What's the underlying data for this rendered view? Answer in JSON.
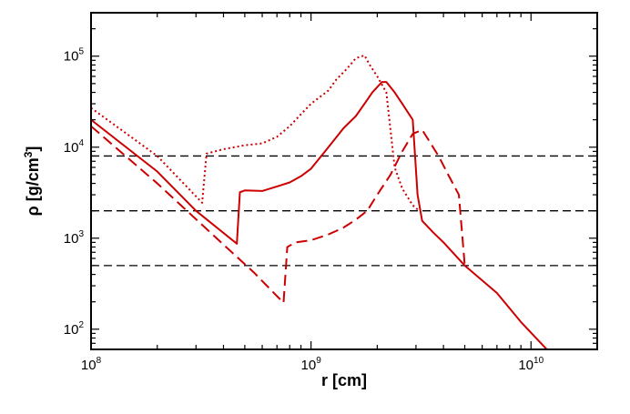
{
  "chart_data": {
    "type": "line",
    "title": "",
    "xlabel": "r [cm]",
    "ylabel_parts": {
      "main": "ρ [g/cm",
      "sup": "3",
      "end": "]"
    },
    "x_scale": "log",
    "y_scale": "log",
    "xlim": [
      100000000.0,
      20000000000.0
    ],
    "ylim": [
      60,
      300000
    ],
    "x_major_ticks": [
      {
        "value": 100000000.0,
        "base": "10",
        "exp": "8"
      },
      {
        "value": 1000000000.0,
        "base": "10",
        "exp": "9"
      },
      {
        "value": 10000000000.0,
        "base": "10",
        "exp": "10"
      }
    ],
    "y_major_ticks": [
      {
        "value": 100,
        "base": "10",
        "exp": "2"
      },
      {
        "value": 1000,
        "base": "10",
        "exp": "3"
      },
      {
        "value": 10000,
        "base": "10",
        "exp": "4"
      },
      {
        "value": 100000,
        "base": "10",
        "exp": "5"
      }
    ],
    "grid": false,
    "line_color": "#cc0000",
    "hlines": [
      {
        "y": 8000,
        "style": "dashed",
        "color": "#000000"
      },
      {
        "y": 2000,
        "style": "dashed",
        "color": "#000000"
      },
      {
        "y": 500,
        "style": "dashed",
        "color": "#000000"
      }
    ],
    "series": [
      {
        "style": "solid",
        "points": [
          [
            100000000.0,
            20000
          ],
          [
            200000000.0,
            5400
          ],
          [
            300000000.0,
            2000
          ],
          [
            460000000.0,
            870
          ],
          [
            475000000.0,
            3200
          ],
          [
            500000000.0,
            3350
          ],
          [
            600000000.0,
            3300
          ],
          [
            700000000.0,
            3700
          ],
          [
            800000000.0,
            4100
          ],
          [
            900000000.0,
            4800
          ],
          [
            1000000000.0,
            5800
          ],
          [
            1200000000.0,
            10000
          ],
          [
            1400000000.0,
            16000
          ],
          [
            1600000000.0,
            22000
          ],
          [
            1750000000.0,
            30000
          ],
          [
            1900000000.0,
            40000
          ],
          [
            2100000000.0,
            52000
          ],
          [
            2200000000.0,
            52000
          ],
          [
            2400000000.0,
            40000
          ],
          [
            2600000000.0,
            30000
          ],
          [
            2900000000.0,
            20000
          ],
          [
            3050000000.0,
            3000
          ],
          [
            3200000000.0,
            1550
          ],
          [
            3600000000.0,
            1150
          ],
          [
            4000000000.0,
            900
          ],
          [
            5000000000.0,
            500
          ],
          [
            7000000000.0,
            250
          ],
          [
            9000000000.0,
            120
          ],
          [
            11800000000.0,
            60
          ]
        ]
      },
      {
        "style": "dotted",
        "points": [
          [
            100000000.0,
            27000
          ],
          [
            200000000.0,
            8000
          ],
          [
            320000000.0,
            2450
          ],
          [
            335000000.0,
            8500
          ],
          [
            400000000.0,
            9500
          ],
          [
            500000000.0,
            10500
          ],
          [
            600000000.0,
            11000
          ],
          [
            700000000.0,
            13000
          ],
          [
            800000000.0,
            17000
          ],
          [
            900000000.0,
            23000
          ],
          [
            1000000000.0,
            30000
          ],
          [
            1200000000.0,
            42000
          ],
          [
            1300000000.0,
            55000
          ],
          [
            1450000000.0,
            72000
          ],
          [
            1600000000.0,
            95000
          ],
          [
            1750000000.0,
            102000
          ],
          [
            1850000000.0,
            80000
          ],
          [
            2000000000.0,
            60000
          ],
          [
            2200000000.0,
            40000
          ],
          [
            2400000000.0,
            6000
          ],
          [
            2600000000.0,
            3500
          ],
          [
            2900000000.0,
            2300
          ],
          [
            3100000000.0,
            2000
          ]
        ]
      },
      {
        "style": "dashed",
        "points": [
          [
            100000000.0,
            17000
          ],
          [
            200000000.0,
            4000
          ],
          [
            400000000.0,
            850
          ],
          [
            550000000.0,
            420
          ],
          [
            750000000.0,
            195
          ],
          [
            780000000.0,
            800
          ],
          [
            850000000.0,
            900
          ],
          [
            1000000000.0,
            950
          ],
          [
            1200000000.0,
            1100
          ],
          [
            1400000000.0,
            1300
          ],
          [
            1600000000.0,
            1600
          ],
          [
            1800000000.0,
            2000
          ],
          [
            2000000000.0,
            3000
          ],
          [
            2300000000.0,
            5000
          ],
          [
            2600000000.0,
            9000
          ],
          [
            2900000000.0,
            14000
          ],
          [
            3200000000.0,
            15500
          ],
          [
            3500000000.0,
            11000
          ],
          [
            3800000000.0,
            8000
          ],
          [
            4200000000.0,
            5000
          ],
          [
            4700000000.0,
            3000
          ],
          [
            5000000000.0,
            500
          ]
        ]
      }
    ]
  }
}
